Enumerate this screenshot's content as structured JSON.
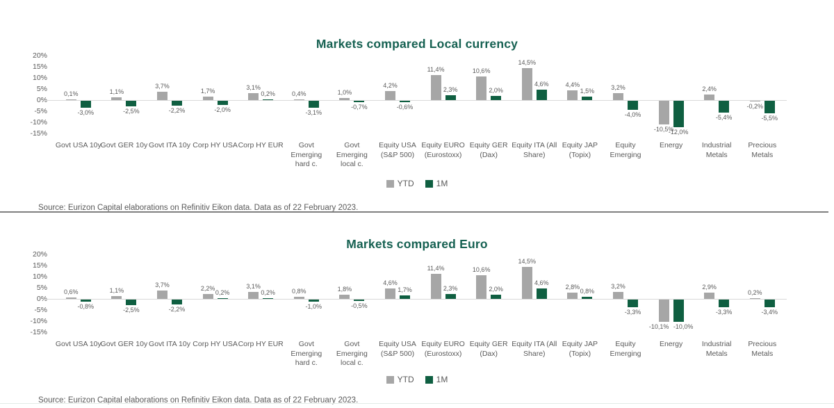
{
  "page": {
    "background": "#ffffff",
    "divider_color": "#7f7f7f"
  },
  "legend": {
    "ytd_label": "YTD",
    "one_m_label": "1M"
  },
  "chart_data": [
    {
      "type": "bar",
      "title_prefix": "Markets compared ",
      "title_emphasis": "Local currency",
      "title_color": "#166152",
      "ylim": [
        -15,
        20
      ],
      "yticks": [
        20,
        15,
        10,
        5,
        0,
        -5,
        -10,
        -15
      ],
      "ytick_labels": [
        "20%",
        "15%",
        "10%",
        "5%",
        "0%",
        "-5%",
        "-10%",
        "-15%"
      ],
      "grid": "zero-line-only",
      "legend_position": "bottom-center",
      "categories": [
        "Govt USA 10y",
        "Govt GER 10y",
        "Govt ITA 10y",
        "Corp HY USA",
        "Corp HY EUR",
        "Govt\nEmerging\nhard c.",
        "Govt\nEmerging\nlocal c.",
        "Equity USA\n(S&P 500)",
        "Equity EURO\n(Eurostoxx)",
        "Equity GER\n(Dax)",
        "Equity ITA (All\nShare)",
        "Equity JAP\n(Topix)",
        "Equity\nEmerging",
        "Energy",
        "Industrial\nMetals",
        "Precious\nMetals"
      ],
      "series": [
        {
          "name": "YTD",
          "color": "#a6a6a6",
          "values": [
            0.1,
            1.1,
            3.7,
            1.7,
            3.1,
            0.4,
            1.0,
            4.2,
            11.4,
            10.6,
            14.5,
            4.4,
            3.2,
            -10.5,
            2.4,
            -0.2
          ],
          "labels": [
            "0,1%",
            "1,1%",
            "3,7%",
            "1,7%",
            "3,1%",
            "0,4%",
            "1,0%",
            "4,2%",
            "11,4%",
            "10,6%",
            "14,5%",
            "4,4%",
            "3,2%",
            "-10,5%",
            "2,4%",
            "-0,2%"
          ]
        },
        {
          "name": "1M",
          "color": "#0f5f41",
          "values": [
            -3.0,
            -2.5,
            -2.2,
            -2.0,
            0.2,
            -3.1,
            -0.7,
            -0.6,
            2.3,
            2.0,
            4.6,
            1.5,
            -4.0,
            -12.0,
            -5.4,
            -5.5
          ],
          "labels": [
            "-3,0%",
            "-2,5%",
            "-2,2%",
            "-2,0%",
            "0,2%",
            "-3,1%",
            "-0,7%",
            "-0,6%",
            "2,3%",
            "2,0%",
            "4,6%",
            "1,5%",
            "-4,0%",
            "-12,0%",
            "-5,4%",
            "-5,5%"
          ]
        }
      ],
      "source": "Source: Eurizon Capital elaborations on Refinitiv Eikon data. Data as of 22 February 2023."
    },
    {
      "type": "bar",
      "title_prefix": "Markets compared ",
      "title_emphasis": "Euro",
      "title_color": "#166152",
      "ylim": [
        -15,
        20
      ],
      "yticks": [
        20,
        15,
        10,
        5,
        0,
        -5,
        -10,
        -15
      ],
      "ytick_labels": [
        "20%",
        "15%",
        "10%",
        "5%",
        "0%",
        "-5%",
        "-10%",
        "-15%"
      ],
      "grid": "zero-line-only",
      "legend_position": "bottom-center",
      "categories": [
        "Govt USA 10y",
        "Govt GER 10y",
        "Govt ITA 10y",
        "Corp HY USA",
        "Corp HY EUR",
        "Govt\nEmerging\nhard c.",
        "Govt\nEmerging\nlocal c.",
        "Equity USA\n(S&P 500)",
        "Equity EURO\n(Eurostoxx)",
        "Equity GER\n(Dax)",
        "Equity ITA (All\nShare)",
        "Equity JAP\n(Topix)",
        "Equity\nEmerging",
        "Energy",
        "Industrial\nMetals",
        "Precious\nMetals"
      ],
      "series": [
        {
          "name": "YTD",
          "color": "#a6a6a6",
          "values": [
            0.6,
            1.1,
            3.7,
            2.2,
            3.1,
            0.8,
            1.8,
            4.6,
            11.4,
            10.6,
            14.5,
            2.8,
            3.2,
            -10.1,
            2.9,
            0.2
          ],
          "labels": [
            "0,6%",
            "1,1%",
            "3,7%",
            "2,2%",
            "3,1%",
            "0,8%",
            "1,8%",
            "4,6%",
            "11,4%",
            "10,6%",
            "14,5%",
            "2,8%",
            "3,2%",
            "-10,1%",
            "2,9%",
            "0,2%"
          ]
        },
        {
          "name": "1M",
          "color": "#0f5f41",
          "values": [
            -0.8,
            -2.5,
            -2.2,
            0.2,
            0.2,
            -1.0,
            -0.5,
            1.7,
            2.3,
            2.0,
            4.6,
            0.8,
            -3.3,
            -10.0,
            -3.3,
            -3.4
          ],
          "labels": [
            "-0,8%",
            "-2,5%",
            "-2,2%",
            "0,2%",
            "0,2%",
            "-1,0%",
            "-0,5%",
            "1,7%",
            "2,3%",
            "2,0%",
            "4,6%",
            "0,8%",
            "-3,3%",
            "-10,0%",
            "-3,3%",
            "-3,4%"
          ]
        }
      ],
      "source": "Source: Eurizon Capital elaborations on Refinitiv Eikon data. Data as of 22 February 2023."
    }
  ]
}
